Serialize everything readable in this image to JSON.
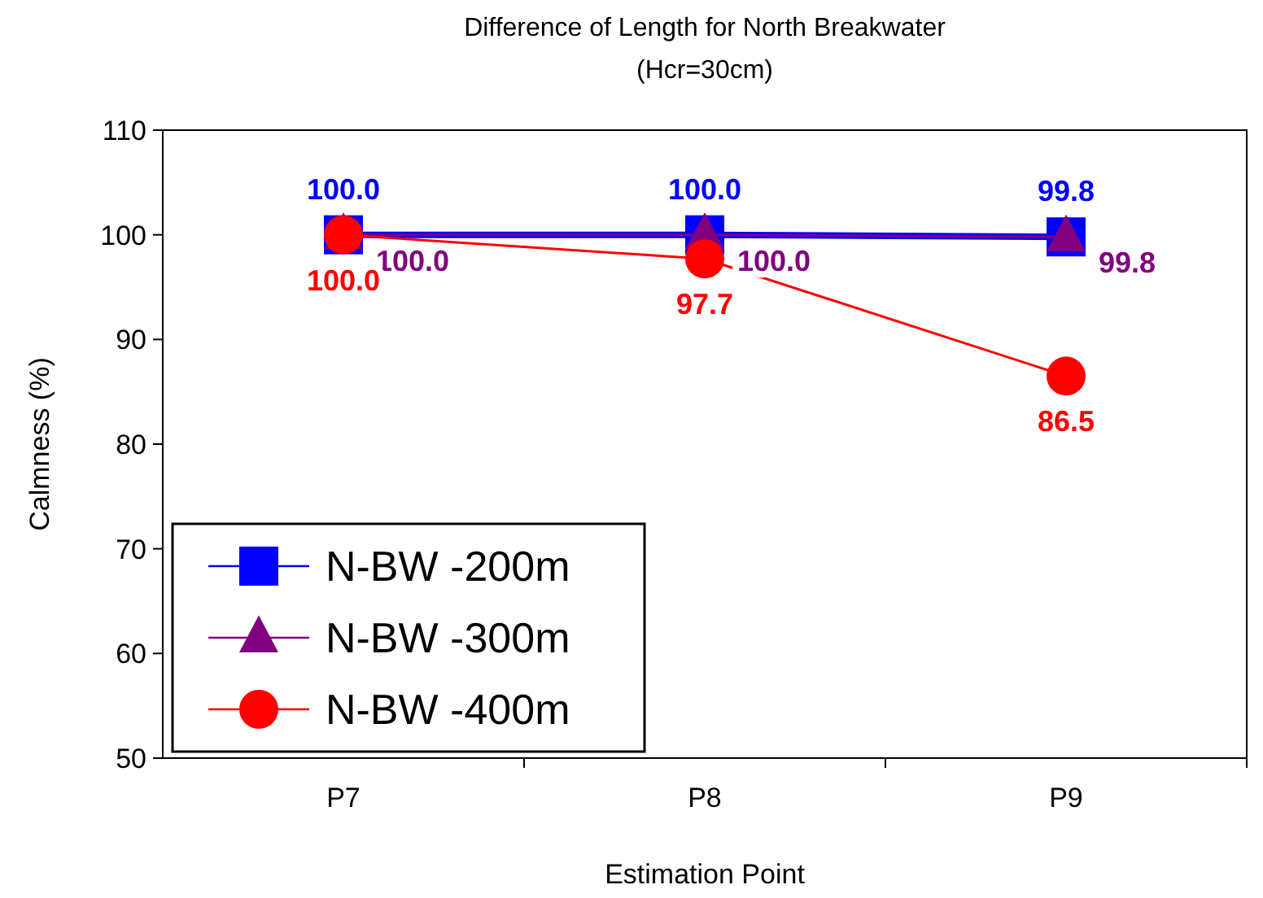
{
  "chart_data": {
    "type": "line",
    "title": "Difference of Length for North Breakwater",
    "subtitle": "(Hcr=30cm)",
    "xlabel": "Estimation Point",
    "ylabel": "Calmness (%)",
    "categories": [
      "P7",
      "P8",
      "P9"
    ],
    "series": [
      {
        "name": "N-BW -200m",
        "color": "#0000ff",
        "marker": "square",
        "values": [
          100.0,
          100.0,
          99.8
        ],
        "value_labels": [
          "100.0",
          "100.0",
          "99.8"
        ]
      },
      {
        "name": "N-BW -300m",
        "color": "#800080",
        "marker": "triangle",
        "values": [
          100.0,
          100.0,
          99.8
        ],
        "value_labels": [
          "100.0",
          "100.0",
          "99.8"
        ]
      },
      {
        "name": "N-BW -400m",
        "color": "#ff0000",
        "marker": "circle",
        "values": [
          100.0,
          97.7,
          86.5
        ],
        "value_labels": [
          "100.0",
          "97.7",
          "86.5"
        ]
      }
    ],
    "ylim": [
      50,
      110
    ],
    "yticks": [
      50,
      60,
      70,
      80,
      90,
      100,
      110
    ],
    "grid": false,
    "legend": "bottom left"
  }
}
